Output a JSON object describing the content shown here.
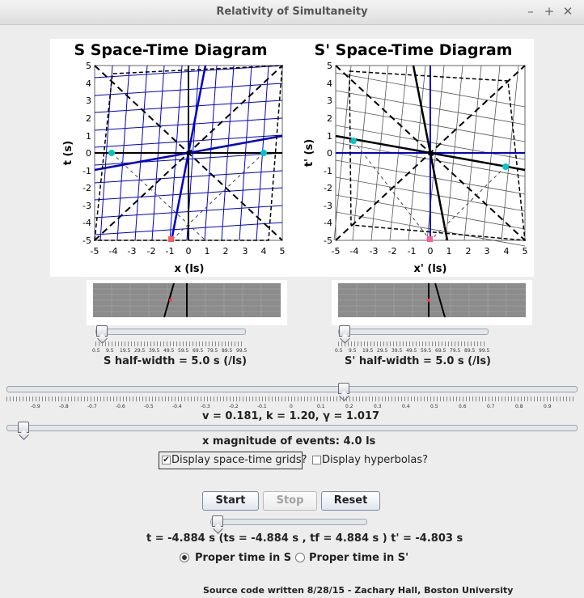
{
  "window": {
    "title": "Relativity of Simultaneity",
    "controls": [
      "–",
      "+",
      "✕"
    ]
  },
  "diagram_s": {
    "title": "S Space-Time Diagram",
    "xlabel": "x (ls)",
    "ylabel": "t (s)",
    "ticks": [
      "-5",
      "-4",
      "-3",
      "-2",
      "-1",
      "0",
      "1",
      "2",
      "3",
      "4",
      "5"
    ]
  },
  "diagram_sp": {
    "title": "S' Space-Time Diagram",
    "xlabel": "x' (ls)",
    "ylabel": "t' (s)",
    "ticks": [
      "-5",
      "-4",
      "-3",
      "-2",
      "-1",
      "0",
      "1",
      "2",
      "3",
      "4",
      "5"
    ]
  },
  "halfwidth_s": {
    "scale": [
      "0.5",
      "9.5",
      "19.5",
      "29.5",
      "39.5",
      "49.5",
      "59.5",
      "69.5",
      "79.5",
      "89.5",
      "99.5"
    ],
    "label": "S half-width = 5.0 s (/ls)"
  },
  "halfwidth_sp": {
    "scale": [
      "0.5",
      "9.5",
      "19.5",
      "29.5",
      "39.5",
      "49.5",
      "59.5",
      "69.5",
      "79.5",
      "89.5",
      "99.5"
    ],
    "label": "S' half-width = 5.0 s (/ls)"
  },
  "velocity": {
    "scale": [
      "-0.9",
      "-0.8",
      "-0.7",
      "-0.6",
      "-0.5",
      "-0.4",
      "-0.3",
      "-0.2",
      "-0.1",
      "0",
      "0.1",
      "0.2",
      "0.3",
      "0.4",
      "0.5",
      "0.6",
      "0.7",
      "0.8",
      "0.9"
    ],
    "value": 0.181,
    "label": "v =  0.181, k =  1.20, γ =  1.017"
  },
  "magnitude": {
    "value_fraction": 0.03,
    "label": "x magnitude of events: 4.0 ls"
  },
  "options": {
    "grids": {
      "label": "Display space-time grids?",
      "checked": true
    },
    "hyperbolas": {
      "label": "Display hyperbolas?",
      "checked": false
    }
  },
  "buttons": {
    "start": "Start",
    "stop": "Stop",
    "reset": "Reset"
  },
  "time_slider": {
    "value_fraction": 0.07
  },
  "time_readout": "t = -4.884 s (ts = -4.884 s , tf = 4.884 s ) t' = -4.803 s",
  "proper_time": {
    "s": {
      "label": "Proper time in S",
      "selected": true
    },
    "sp": {
      "label": "Proper time in S'",
      "selected": false
    }
  },
  "footer": "Source code written 8/28/15 - Zachary Hall, Boston University",
  "colors": {
    "blue": "#0000cc",
    "cyan": "#00c8c8",
    "red": "#ff5a5a",
    "gray_panel": "#8c8c8c"
  }
}
